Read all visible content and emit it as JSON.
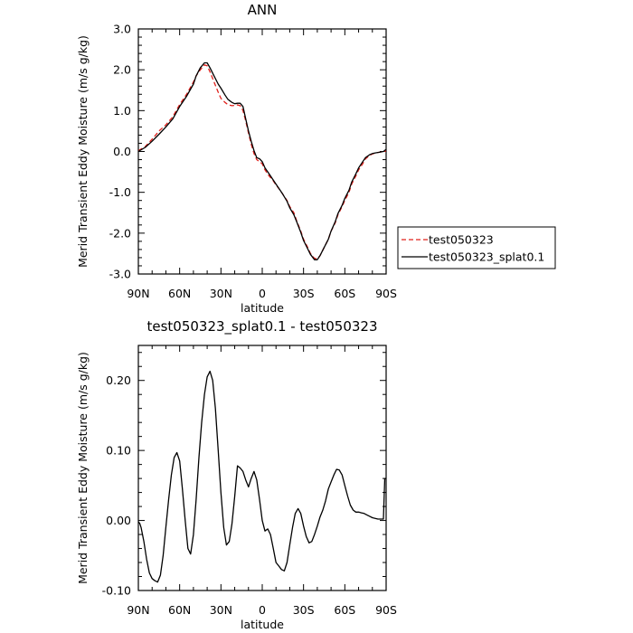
{
  "chart_data": [
    {
      "type": "line",
      "title": "ANN",
      "xlabel": "latitude",
      "ylabel": "Merid Transient Eddy Moisture (m/s g/kg)",
      "xlim": [
        90,
        -90
      ],
      "ylim": [
        -3.0,
        3.0
      ],
      "xticks": [
        90,
        60,
        30,
        0,
        -30,
        -60,
        -90
      ],
      "xticklabels": [
        "90N",
        "60N",
        "30N",
        "0",
        "30S",
        "60S",
        "90S"
      ],
      "yticks": [
        -3.0,
        -2.0,
        -1.0,
        0.0,
        1.0,
        2.0,
        3.0
      ],
      "yticklabels": [
        "-3.0",
        "-2.0",
        "-1.0",
        "0.0",
        "1.0",
        "2.0",
        "3.0"
      ],
      "grid": false,
      "legend": "right",
      "series": [
        {
          "name": "test050323",
          "color": "#e0201b",
          "dash": "dashed",
          "x": [
            90,
            85,
            80,
            75,
            70,
            65,
            60,
            55,
            50,
            48,
            45,
            42,
            40,
            38,
            35,
            32,
            30,
            27,
            25,
            22,
            20,
            18,
            16,
            14,
            12,
            10,
            8,
            6,
            4,
            2,
            0,
            -2,
            -5,
            -8,
            -10,
            -13,
            -15,
            -18,
            -20,
            -23,
            -25,
            -28,
            -30,
            -33,
            -35,
            -38,
            -40,
            -42,
            -45,
            -48,
            -50,
            -53,
            -55,
            -58,
            -60,
            -63,
            -65,
            -68,
            -70,
            -73,
            -75,
            -78,
            -80,
            -83,
            -85,
            -88,
            -90
          ],
          "values": [
            0.02,
            0.12,
            0.3,
            0.5,
            0.65,
            0.85,
            1.15,
            1.4,
            1.7,
            1.85,
            2.0,
            2.12,
            2.1,
            1.95,
            1.7,
            1.45,
            1.3,
            1.2,
            1.15,
            1.12,
            1.13,
            1.14,
            1.12,
            1.0,
            0.75,
            0.45,
            0.18,
            -0.05,
            -0.2,
            -0.25,
            -0.3,
            -0.45,
            -0.6,
            -0.72,
            -0.82,
            -0.95,
            -1.05,
            -1.2,
            -1.35,
            -1.5,
            -1.7,
            -1.95,
            -2.15,
            -2.35,
            -2.5,
            -2.62,
            -2.63,
            -2.55,
            -2.35,
            -2.15,
            -1.95,
            -1.75,
            -1.55,
            -1.35,
            -1.2,
            -1.0,
            -0.8,
            -0.6,
            -0.45,
            -0.3,
            -0.18,
            -0.1,
            -0.06,
            -0.03,
            -0.02,
            0.0,
            0.01
          ]
        },
        {
          "name": "test050323_splat0.1",
          "color": "#000000",
          "dash": "solid",
          "x": [
            90,
            85,
            80,
            75,
            70,
            65,
            60,
            55,
            50,
            48,
            45,
            42,
            40,
            38,
            35,
            32,
            30,
            27,
            25,
            22,
            20,
            18,
            16,
            14,
            12,
            10,
            8,
            6,
            4,
            2,
            0,
            -2,
            -5,
            -8,
            -10,
            -13,
            -15,
            -18,
            -20,
            -23,
            -25,
            -28,
            -30,
            -33,
            -35,
            -38,
            -40,
            -42,
            -45,
            -48,
            -50,
            -53,
            -55,
            -58,
            -60,
            -63,
            -65,
            -68,
            -70,
            -73,
            -75,
            -78,
            -80,
            -83,
            -85,
            -88,
            -90
          ],
          "values": [
            0.0,
            0.1,
            0.25,
            0.42,
            0.6,
            0.8,
            1.1,
            1.35,
            1.65,
            1.85,
            2.05,
            2.17,
            2.17,
            2.05,
            1.85,
            1.65,
            1.55,
            1.38,
            1.28,
            1.2,
            1.17,
            1.18,
            1.18,
            1.1,
            0.8,
            0.5,
            0.25,
            0.02,
            -0.15,
            -0.18,
            -0.25,
            -0.4,
            -0.55,
            -0.7,
            -0.8,
            -0.95,
            -1.05,
            -1.22,
            -1.38,
            -1.55,
            -1.72,
            -1.98,
            -2.18,
            -2.38,
            -2.52,
            -2.65,
            -2.65,
            -2.55,
            -2.35,
            -2.15,
            -1.95,
            -1.72,
            -1.52,
            -1.32,
            -1.15,
            -0.95,
            -0.75,
            -0.55,
            -0.4,
            -0.25,
            -0.15,
            -0.08,
            -0.05,
            -0.03,
            -0.02,
            0.0,
            0.05
          ]
        }
      ]
    },
    {
      "type": "line",
      "title": "test050323_splat0.1 - test050323",
      "xlabel": "latitude",
      "ylabel": "Merid Transient Eddy Moisture (m/s g/kg)",
      "xlim": [
        90,
        -90
      ],
      "ylim": [
        -0.1,
        0.25
      ],
      "xticks": [
        90,
        60,
        30,
        0,
        -30,
        -60,
        -90
      ],
      "xticklabels": [
        "90N",
        "60N",
        "30N",
        "0",
        "30S",
        "60S",
        "90S"
      ],
      "yticks": [
        -0.1,
        0.0,
        0.1,
        0.2
      ],
      "yticklabels": [
        "-0.10",
        "0.00",
        "0.10",
        "0.20"
      ],
      "grid": false,
      "legend": "none",
      "series": [
        {
          "color": "#000000",
          "dash": "solid",
          "x": [
            90,
            89,
            88,
            86,
            84,
            82,
            80,
            78,
            76,
            74,
            72,
            70,
            68,
            66,
            64,
            62,
            60,
            58,
            56,
            54,
            52,
            50,
            48,
            46,
            44,
            42,
            40,
            38,
            36,
            34,
            32,
            30,
            28,
            26,
            24,
            22,
            20,
            18,
            16,
            14,
            12,
            10,
            8,
            6,
            4,
            2,
            0,
            -2,
            -4,
            -6,
            -8,
            -10,
            -12,
            -14,
            -16,
            -18,
            -20,
            -22,
            -24,
            -26,
            -28,
            -30,
            -32,
            -34,
            -36,
            -38,
            -40,
            -42,
            -44,
            -46,
            -48,
            -50,
            -52,
            -54,
            -56,
            -58,
            -60,
            -62,
            -64,
            -66,
            -68,
            -70,
            -72,
            -74,
            -76,
            -78,
            -80,
            -82,
            -84,
            -86,
            -88,
            -89,
            -90
          ],
          "values": [
            -0.002,
            -0.004,
            -0.01,
            -0.03,
            -0.055,
            -0.075,
            -0.083,
            -0.086,
            -0.088,
            -0.078,
            -0.05,
            -0.01,
            0.03,
            0.065,
            0.09,
            0.097,
            0.085,
            0.045,
            0.0,
            -0.04,
            -0.048,
            -0.02,
            0.03,
            0.09,
            0.14,
            0.18,
            0.205,
            0.213,
            0.2,
            0.16,
            0.1,
            0.04,
            -0.01,
            -0.035,
            -0.03,
            -0.005,
            0.035,
            0.078,
            0.075,
            0.07,
            0.058,
            0.048,
            0.06,
            0.07,
            0.058,
            0.03,
            0.0,
            -0.015,
            -0.012,
            -0.02,
            -0.04,
            -0.06,
            -0.065,
            -0.07,
            -0.072,
            -0.06,
            -0.035,
            -0.01,
            0.01,
            0.017,
            0.01,
            -0.008,
            -0.023,
            -0.032,
            -0.03,
            -0.02,
            -0.008,
            0.005,
            0.015,
            0.028,
            0.045,
            0.055,
            0.065,
            0.073,
            0.072,
            0.065,
            0.05,
            0.035,
            0.022,
            0.015,
            0.012,
            0.012,
            0.011,
            0.01,
            0.008,
            0.006,
            0.004,
            0.003,
            0.002,
            0.002,
            0.002,
            0.06,
            0.06
          ]
        }
      ]
    }
  ]
}
